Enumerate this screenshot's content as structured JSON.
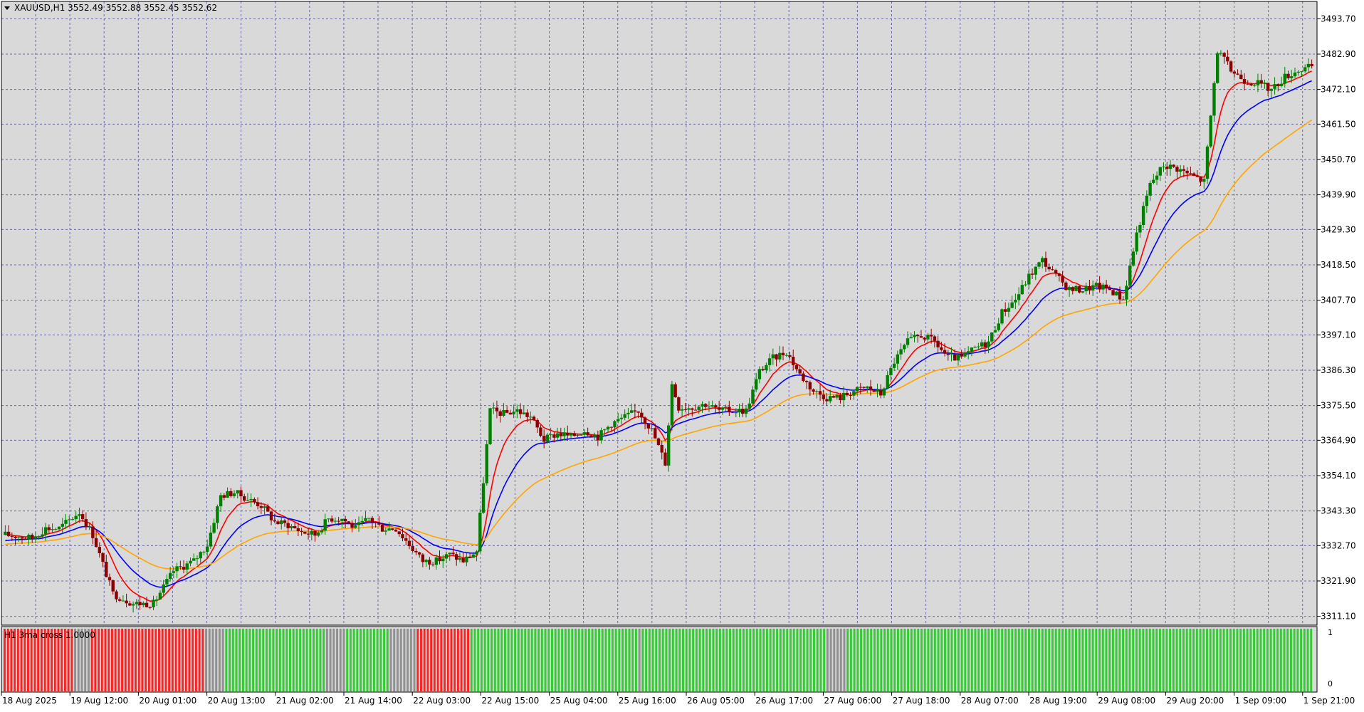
{
  "chart_data": [
    {
      "type": "candlestick",
      "symbol_line": "XAUUSD,H1  3552.49 3552.88 3552.45 3552.62",
      "y_ticks": [
        "3493.70",
        "3482.90",
        "3472.10",
        "3461.50",
        "3450.70",
        "3439.90",
        "3429.30",
        "3418.50",
        "3407.70",
        "3397.10",
        "3386.30",
        "3375.50",
        "3364.90",
        "3354.10",
        "3343.30",
        "3332.70",
        "3321.90",
        "3311.10"
      ],
      "ylim": [
        3308.4,
        3499.0
      ],
      "x_ticks": [
        "18 Aug 2025",
        "19 Aug 12:00",
        "20 Aug 01:00",
        "20 Aug 13:00",
        "21 Aug 02:00",
        "21 Aug 14:00",
        "22 Aug 03:00",
        "22 Aug 15:00",
        "25 Aug 04:00",
        "25 Aug 16:00",
        "26 Aug 05:00",
        "26 Aug 17:00",
        "27 Aug 06:00",
        "27 Aug 18:00",
        "28 Aug 07:00",
        "28 Aug 19:00",
        "29 Aug 08:00",
        "29 Aug 20:00",
        "1 Sep 09:00",
        "1 Sep 21:00"
      ],
      "grid": true,
      "price_path": [
        [
          0,
          3336
        ],
        [
          8,
          3335
        ],
        [
          12,
          3338
        ],
        [
          16,
          3338
        ],
        [
          22,
          3343
        ],
        [
          26,
          3336
        ],
        [
          32,
          3318
        ],
        [
          38,
          3315
        ],
        [
          44,
          3315
        ],
        [
          50,
          3325
        ],
        [
          56,
          3328
        ],
        [
          60,
          3333
        ],
        [
          64,
          3348
        ],
        [
          68,
          3349
        ],
        [
          72,
          3347
        ],
        [
          76,
          3345
        ],
        [
          80,
          3340
        ],
        [
          84,
          3339
        ],
        [
          88,
          3337
        ],
        [
          92,
          3336
        ],
        [
          96,
          3341
        ],
        [
          100,
          3341
        ],
        [
          104,
          3338
        ],
        [
          108,
          3341
        ],
        [
          112,
          3338
        ],
        [
          116,
          3338
        ],
        [
          120,
          3333
        ],
        [
          124,
          3328
        ],
        [
          128,
          3328
        ],
        [
          132,
          3330
        ],
        [
          136,
          3328
        ],
        [
          140,
          3331
        ],
        [
          144,
          3374
        ],
        [
          148,
          3373
        ],
        [
          152,
          3374
        ],
        [
          156,
          3372
        ],
        [
          160,
          3365
        ],
        [
          164,
          3367
        ],
        [
          168,
          3366
        ],
        [
          172,
          3368
        ],
        [
          176,
          3366
        ],
        [
          180,
          3370
        ],
        [
          184,
          3372
        ],
        [
          188,
          3374
        ],
        [
          192,
          3368
        ],
        [
          196,
          3358
        ],
        [
          198,
          3382
        ],
        [
          200,
          3375
        ],
        [
          204,
          3375
        ],
        [
          208,
          3376
        ],
        [
          212,
          3374
        ],
        [
          216,
          3374
        ],
        [
          220,
          3374
        ],
        [
          224,
          3386
        ],
        [
          228,
          3390
        ],
        [
          232,
          3392
        ],
        [
          236,
          3385
        ],
        [
          240,
          3380
        ],
        [
          244,
          3378
        ],
        [
          248,
          3378
        ],
        [
          252,
          3380
        ],
        [
          256,
          3381
        ],
        [
          260,
          3379
        ],
        [
          264,
          3389
        ],
        [
          268,
          3395
        ],
        [
          272,
          3397
        ],
        [
          276,
          3395
        ],
        [
          280,
          3390
        ],
        [
          284,
          3390
        ],
        [
          288,
          3393
        ],
        [
          292,
          3395
        ],
        [
          296,
          3404
        ],
        [
          300,
          3408
        ],
        [
          304,
          3415
        ],
        [
          308,
          3420
        ],
        [
          312,
          3415
        ],
        [
          316,
          3411
        ],
        [
          320,
          3411
        ],
        [
          324,
          3412
        ],
        [
          328,
          3411
        ],
        [
          332,
          3408
        ],
        [
          336,
          3428
        ],
        [
          340,
          3443
        ],
        [
          344,
          3449
        ],
        [
          348,
          3448
        ],
        [
          352,
          3446
        ],
        [
          356,
          3444
        ],
        [
          360,
          3484
        ],
        [
          364,
          3478
        ],
        [
          368,
          3475
        ],
        [
          372,
          3474
        ],
        [
          376,
          3472
        ],
        [
          380,
          3476
        ],
        [
          384,
          3478
        ],
        [
          388,
          3479
        ]
      ],
      "series": [
        {
          "color": "#ff0000",
          "ma_period": 9
        },
        {
          "color": "#0000ff",
          "ma_period": 21
        },
        {
          "color": "#ffa500",
          "ma_period": 50
        }
      ],
      "up_color": "#008000",
      "down_color": "#8b0000"
    },
    {
      "type": "bar",
      "indicator_label": "H1  3ma cross 1.0000",
      "y_ticks": [
        "1",
        "0"
      ],
      "ylim": [
        0,
        1
      ],
      "segments": [
        {
          "state": "red",
          "bars": 21
        },
        {
          "state": "gray",
          "bars": 5
        },
        {
          "state": "red",
          "bars": 34
        },
        {
          "state": "gray",
          "bars": 6
        },
        {
          "state": "green",
          "bars": 30
        },
        {
          "state": "gray",
          "bars": 6
        },
        {
          "state": "green",
          "bars": 13
        },
        {
          "state": "gray",
          "bars": 8
        },
        {
          "state": "red",
          "bars": 16
        },
        {
          "state": "green",
          "bars": 50
        },
        {
          "state": "gray",
          "bars": 1
        },
        {
          "state": "green",
          "bars": 55
        },
        {
          "state": "gray",
          "bars": 6
        },
        {
          "state": "green",
          "bars": 139
        }
      ],
      "colors": {
        "red": "#ff2020",
        "green": "#33cc33",
        "gray": "#909090"
      },
      "value": 1
    }
  ]
}
